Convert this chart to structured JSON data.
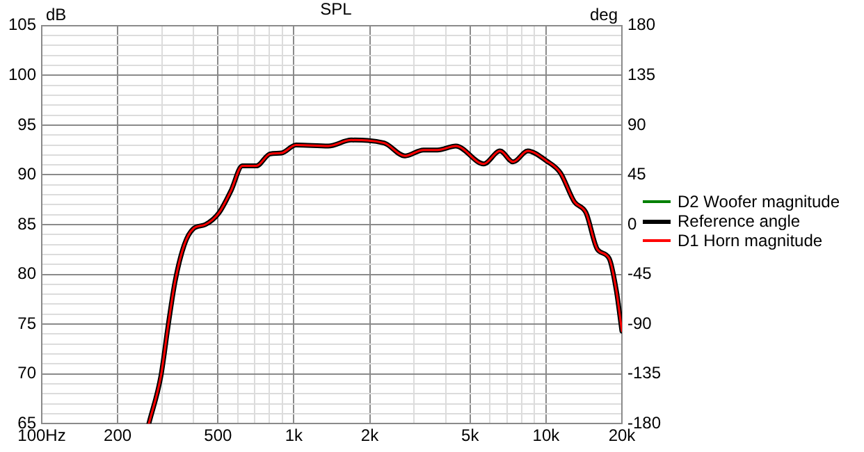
{
  "chart_data": {
    "type": "line",
    "title": "SPL",
    "ylabel": "dB",
    "y2label": "deg",
    "x": [
      266,
      297,
      317,
      338,
      368,
      400,
      445,
      505,
      563,
      625,
      710,
      804,
      895,
      1020,
      1370,
      1690,
      2280,
      2760,
      3265,
      3710,
      4390,
      5660,
      6570,
      7400,
      8470,
      10050,
      11400,
      12950,
      14400,
      16000,
      17800,
      19000,
      20000
    ],
    "series": [
      {
        "name": "D2 Woofer magnitude",
        "color": "#008000",
        "values": [
          null,
          null,
          null,
          null,
          null,
          null,
          null,
          null,
          null,
          null,
          null,
          null,
          null,
          null,
          null,
          null,
          null,
          null,
          null,
          null,
          null,
          null,
          null,
          null,
          null,
          null,
          null,
          null,
          null,
          null,
          null,
          null,
          null
        ]
      },
      {
        "name": "Reference angle",
        "color": "#000000",
        "values": [
          65,
          69.8,
          74.8,
          79.3,
          83,
          84.6,
          85,
          86.2,
          88.4,
          90.9,
          90.9,
          92.1,
          92.2,
          93,
          92.9,
          93.5,
          93.2,
          91.9,
          92.5,
          92.5,
          92.9,
          91.1,
          92.4,
          91.3,
          92.4,
          91.4,
          90.2,
          87.3,
          86.2,
          82.5,
          81.6,
          78.4,
          74.3
        ]
      },
      {
        "name": "D1 Horn magnitude",
        "color": "#ff0000",
        "values": [
          65,
          69.8,
          74.8,
          79.3,
          83,
          84.6,
          85,
          86.2,
          88.4,
          90.9,
          90.9,
          92.1,
          92.2,
          93,
          92.9,
          93.5,
          93.2,
          91.9,
          92.5,
          92.5,
          92.9,
          91.1,
          92.4,
          91.3,
          92.4,
          91.4,
          90.2,
          87.3,
          86.2,
          82.5,
          81.6,
          78.4,
          74.3
        ]
      }
    ],
    "log": "x",
    "xlim": [
      100,
      20000
    ],
    "xticks": [
      {
        "value": 100,
        "label": "100Hz"
      },
      {
        "value": 200,
        "label": "200"
      },
      {
        "value": 300,
        "label": null
      },
      {
        "value": 400,
        "label": null
      },
      {
        "value": 500,
        "label": "500"
      },
      {
        "value": 600,
        "label": null
      },
      {
        "value": 700,
        "label": null
      },
      {
        "value": 800,
        "label": null
      },
      {
        "value": 900,
        "label": null
      },
      {
        "value": 1000,
        "label": "1k"
      },
      {
        "value": 2000,
        "label": "2k"
      },
      {
        "value": 3000,
        "label": null
      },
      {
        "value": 4000,
        "label": null
      },
      {
        "value": 5000,
        "label": "5k"
      },
      {
        "value": 6000,
        "label": null
      },
      {
        "value": 7000,
        "label": null
      },
      {
        "value": 8000,
        "label": null
      },
      {
        "value": 9000,
        "label": null
      },
      {
        "value": 10000,
        "label": "10k"
      },
      {
        "value": 20000,
        "label": "20k"
      }
    ],
    "ylim": [
      65,
      105
    ],
    "yticks": [
      65,
      {
        "value": 66,
        "label": null
      },
      {
        "value": 67,
        "label": null
      },
      {
        "value": 68,
        "label": null
      },
      {
        "value": 69,
        "label": null
      },
      70,
      {
        "value": 71,
        "label": null
      },
      {
        "value": 72,
        "label": null
      },
      {
        "value": 73,
        "label": null
      },
      {
        "value": 74,
        "label": null
      },
      75,
      {
        "value": 76,
        "label": null
      },
      {
        "value": 77,
        "label": null
      },
      {
        "value": 78,
        "label": null
      },
      {
        "value": 79,
        "label": null
      },
      80,
      {
        "value": 81,
        "label": null
      },
      {
        "value": 82,
        "label": null
      },
      {
        "value": 83,
        "label": null
      },
      {
        "value": 84,
        "label": null
      },
      85,
      {
        "value": 86,
        "label": null
      },
      {
        "value": 87,
        "label": null
      },
      {
        "value": 88,
        "label": null
      },
      {
        "value": 89,
        "label": null
      },
      90,
      {
        "value": 91,
        "label": null
      },
      {
        "value": 92,
        "label": null
      },
      {
        "value": 93,
        "label": null
      },
      {
        "value": 94,
        "label": null
      },
      95,
      {
        "value": 96,
        "label": null
      },
      {
        "value": 97,
        "label": null
      },
      {
        "value": 98,
        "label": null
      },
      {
        "value": 99,
        "label": null
      },
      100,
      {
        "value": 101,
        "label": null
      },
      {
        "value": 102,
        "label": null
      },
      {
        "value": 103,
        "label": null
      },
      {
        "value": 104,
        "label": null
      },
      105
    ],
    "y2lim": [
      -180,
      180
    ],
    "y2ticks": [
      -180,
      -135,
      -90,
      -45,
      0,
      45,
      90,
      135,
      180
    ],
    "grid": true,
    "legend": "right",
    "marker": "none",
    "line_style": "solid"
  }
}
